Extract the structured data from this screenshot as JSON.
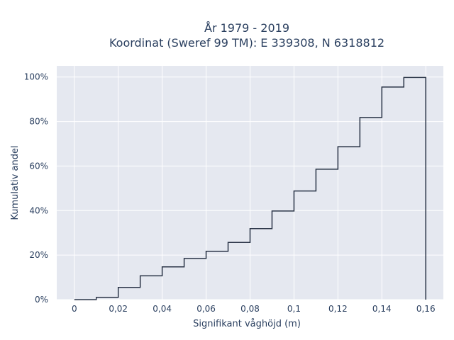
{
  "chart_data": {
    "type": "line",
    "line_shape": "step",
    "title_line1": "År 1979 - 2019",
    "title_line2": "Koordinat (Sweref 99 TM): E 339308, N 6318812",
    "xlabel": "Signifikant våghöjd (m)",
    "ylabel": "Kumulativ andel",
    "xlim": [
      -0.008,
      0.168
    ],
    "ylim": [
      0,
      1.05
    ],
    "x_ticks": [
      0,
      0.02,
      0.04,
      0.06,
      0.08,
      0.1,
      0.12,
      0.14,
      0.16
    ],
    "x_tick_labels": [
      "0",
      "0,02",
      "0,04",
      "0,06",
      "0,08",
      "0,1",
      "0,12",
      "0,14",
      "0,16"
    ],
    "y_ticks": [
      0,
      0.2,
      0.4,
      0.6,
      0.8,
      1.0
    ],
    "y_tick_labels": [
      "0%",
      "20%",
      "40%",
      "60%",
      "80%",
      "100%"
    ],
    "grid": true,
    "plot_background": "#e5e8f0",
    "line_color": "#2a3447",
    "x": [
      0,
      0.01,
      0.02,
      0.03,
      0.04,
      0.05,
      0.06,
      0.07,
      0.08,
      0.09,
      0.1,
      0.11,
      0.12,
      0.13,
      0.14,
      0.15,
      0.16
    ],
    "y": [
      0.0,
      0.01,
      0.055,
      0.107,
      0.147,
      0.185,
      0.217,
      0.257,
      0.319,
      0.398,
      0.488,
      0.586,
      0.687,
      0.818,
      0.955,
      0.998,
      0.0
    ]
  }
}
